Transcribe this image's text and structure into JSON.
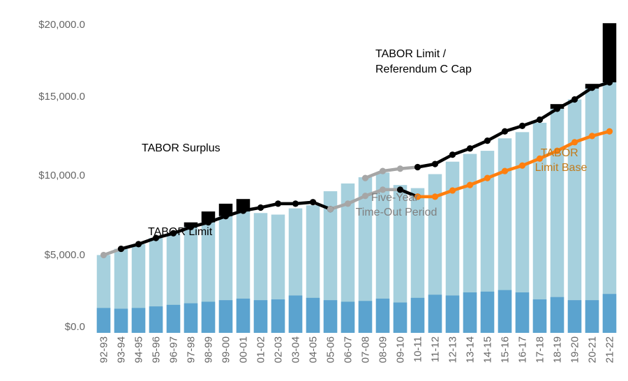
{
  "chart_data": {
    "type": "bar",
    "title": "",
    "xlabel": "",
    "ylabel": "",
    "ylim": [
      0,
      20000
    ],
    "y_ticks": [
      "$0.0",
      "$5,000.0",
      "$10,000.0",
      "$15,000.0",
      "$20,000.0"
    ],
    "categories": [
      "92-93",
      "93-94",
      "94-95",
      "95-96",
      "96-97",
      "97-98",
      "98-99",
      "99-00",
      "00-01",
      "01-02",
      "02-03",
      "03-04",
      "04-05",
      "05-06",
      "06-07",
      "07-08",
      "08-09",
      "09-10",
      "10-11",
      "11-12",
      "12-13",
      "13-14",
      "14-15",
      "15-16",
      "16-17",
      "17-18",
      "18-19",
      "19-20",
      "20-21",
      "21-22"
    ],
    "series": [
      {
        "values": [
          1600,
          1550,
          1600,
          1700,
          1800,
          1900,
          2000,
          2100,
          2200,
          2100,
          2150,
          2400,
          2250,
          2100,
          2000,
          2050,
          2200,
          1950,
          2250,
          2450,
          2400,
          2600,
          2650,
          2750,
          2600,
          2150,
          2300,
          2100,
          2100,
          2500
        ]
      },
      {
        "values": [
          5000,
          5400,
          5700,
          6100,
          6400,
          6800,
          7100,
          7500,
          7800,
          7700,
          7600,
          8000,
          8200,
          9100,
          9600,
          10000,
          10300,
          9500,
          9300,
          10200,
          11000,
          11500,
          11700,
          12500,
          12900,
          13500,
          14400,
          15000,
          15700,
          16100
        ]
      },
      {
        "values": [
          0,
          0,
          0,
          0,
          0,
          300,
          700,
          800,
          800,
          0,
          0,
          0,
          0,
          0,
          0,
          0,
          0,
          0,
          0,
          0,
          0,
          0,
          0,
          0,
          0,
          0,
          300,
          0,
          300,
          3800
        ]
      }
    ],
    "lines": [
      {
        "color": "#a6a6a6",
        "points": [
          [
            0,
            5000
          ],
          [
            1,
            5400
          ]
        ]
      },
      {
        "color": "#000000",
        "points": [
          [
            1,
            5400
          ],
          [
            2,
            5700
          ],
          [
            3,
            6100
          ],
          [
            4,
            6400
          ],
          [
            5,
            6800
          ],
          [
            6,
            7100
          ],
          [
            7,
            7500
          ],
          [
            8,
            7850
          ],
          [
            9,
            8050
          ],
          [
            10,
            8300
          ],
          [
            11,
            8300
          ],
          [
            12,
            8400
          ],
          [
            13,
            7950
          ]
        ]
      },
      {
        "color": "#a6a6a6",
        "points": [
          [
            13,
            7950
          ],
          [
            14,
            8300
          ],
          [
            15,
            8800
          ],
          [
            16,
            9200
          ],
          [
            17,
            9200
          ]
        ]
      },
      {
        "color": "#a6a6a6",
        "points": [
          [
            15,
            9950
          ],
          [
            16,
            10400
          ],
          [
            17,
            10550
          ],
          [
            18,
            10650
          ]
        ]
      },
      {
        "color": "#000000",
        "points": [
          [
            18,
            10650
          ],
          [
            19,
            10850
          ],
          [
            20,
            11450
          ],
          [
            21,
            11850
          ],
          [
            22,
            12350
          ],
          [
            23,
            12950
          ],
          [
            24,
            13300
          ],
          [
            25,
            13700
          ],
          [
            26,
            14400
          ],
          [
            27,
            15000
          ],
          [
            28,
            15750
          ],
          [
            29,
            16100
          ]
        ]
      },
      {
        "color": "#000000",
        "points": [
          [
            17,
            9200
          ],
          [
            18,
            8750
          ]
        ]
      },
      {
        "color": "#ff7f0e",
        "points": [
          [
            18,
            8750
          ],
          [
            19,
            8750
          ],
          [
            20,
            9150
          ],
          [
            21,
            9500
          ],
          [
            22,
            9950
          ],
          [
            23,
            10400
          ],
          [
            24,
            10750
          ],
          [
            25,
            11200
          ],
          [
            26,
            11700
          ],
          [
            27,
            12250
          ],
          [
            28,
            12650
          ],
          [
            29,
            12950
          ]
        ]
      }
    ],
    "annotations": [
      {
        "lines": [
          "TABOR Limit /",
          "Referendum C Cap"
        ],
        "color": "#000000"
      },
      {
        "lines": [
          "TABOR Surplus"
        ],
        "color": "#000000"
      },
      {
        "lines": [
          "TABOR Limit"
        ],
        "color": "#000000"
      },
      {
        "lines": [
          "Five-Year",
          "Time-Out Period"
        ],
        "color": "#808080"
      },
      {
        "lines": [
          "TABOR",
          "Limit Base"
        ],
        "color": "#c27b1b"
      }
    ],
    "grid": false,
    "legend": "none"
  }
}
